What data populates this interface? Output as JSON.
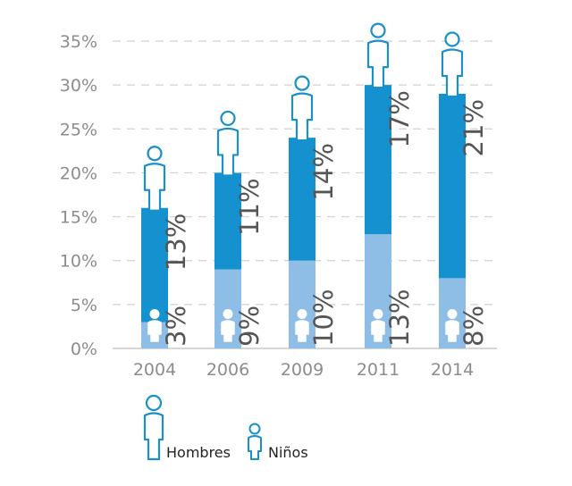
{
  "chart_data": {
    "type": "bar",
    "stacked": true,
    "categories": [
      "2004",
      "2006",
      "2009",
      "2011",
      "2014"
    ],
    "series": [
      {
        "name": "Niños",
        "values": [
          3,
          9,
          10,
          13,
          8
        ],
        "labels": [
          "3%",
          "9%",
          "10%",
          "13%",
          "8%"
        ]
      },
      {
        "name": "Hombres",
        "values": [
          13,
          11,
          14,
          17,
          21
        ],
        "labels": [
          "13%",
          "11%",
          "14%",
          "17%",
          "21%"
        ]
      }
    ],
    "ylim": [
      0,
      35
    ],
    "yticks": [
      "0%",
      "5%",
      "10%",
      "15%",
      "20%",
      "25%",
      "30%",
      "35%"
    ],
    "grid": true,
    "legend": [
      {
        "label": "Hombres",
        "icon": "man-icon"
      },
      {
        "label": "Niños",
        "icon": "child-icon"
      }
    ],
    "colors": {
      "Hombres": "#1591d0",
      "Niños": "#8ebde6",
      "icon": "#1a8fc9",
      "grid": "#d0d0d0"
    }
  }
}
